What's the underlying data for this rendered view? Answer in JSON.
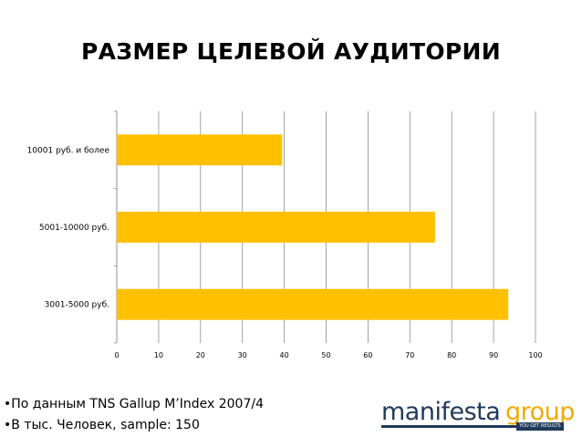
{
  "title": "РАЗМЕР ЦЕЛЕВОЙ АУДИТОРИИ",
  "chart_data": {
    "type": "bar",
    "orientation": "horizontal",
    "categories": [
      "10001 руб. и более",
      "5001-10000 руб.",
      "3001-5000 руб."
    ],
    "values": [
      39.5,
      76,
      93.5
    ],
    "xlim": [
      0,
      100
    ],
    "xticks": [
      "0",
      "10",
      "20",
      "30",
      "40",
      "50",
      "60",
      "70",
      "80",
      "90",
      "100"
    ],
    "grid": "vertical",
    "bar_color": "#FFC000"
  },
  "notes": [
    "•По данным TNS Gallup M’Index 2007/4",
    "•В тыс. Человек, sample: 150"
  ],
  "logo": {
    "word_left": "manifesta",
    "word_right": "group",
    "tagline": "YOU GET RESULTS"
  }
}
